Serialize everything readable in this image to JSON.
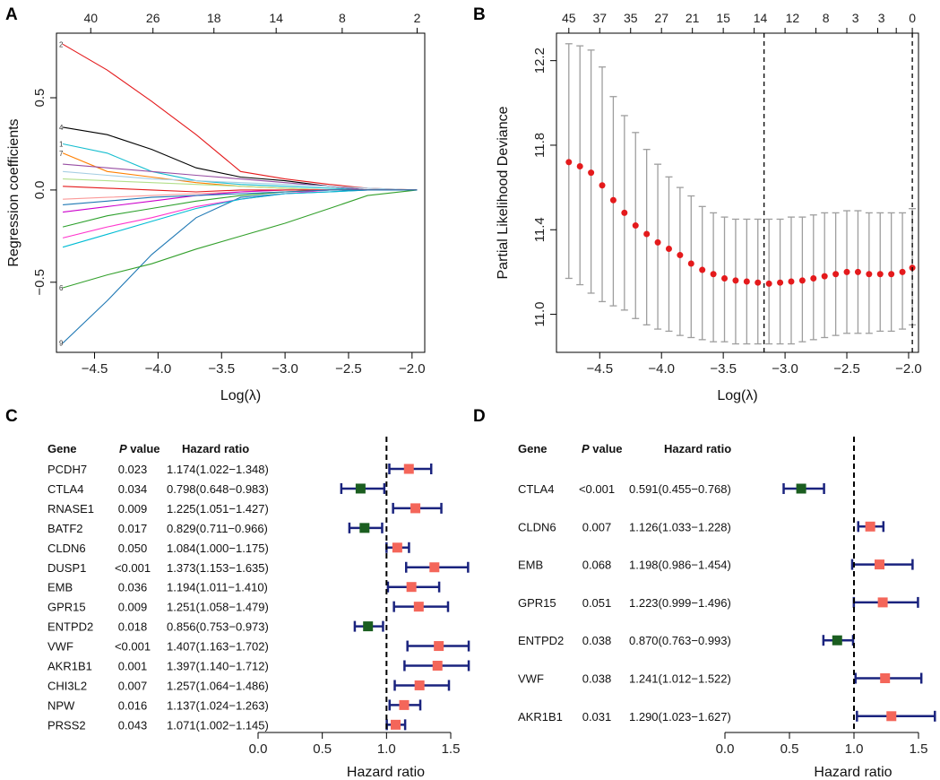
{
  "colors": {
    "deviance_point": "#e41a1c",
    "errorbar": "#9e9e9e",
    "risk_marker": "#f4665a",
    "protective_marker": "#1b5e20",
    "ci_line": "#1a237e",
    "lasso_palette": [
      "#e41a1c",
      "#1f78b4",
      "#33a02c",
      "#000000",
      "#17becf",
      "#ff7f00",
      "#984ea3",
      "#a6cee3",
      "#b2df8a",
      "#fb9a99",
      "#cc00cc",
      "#2ca02c",
      "#ff33cc",
      "#00bcd4"
    ]
  },
  "panel_labels": [
    "A",
    "B",
    "C",
    "D"
  ],
  "chart_data": [
    {
      "panel": "A",
      "type": "line",
      "title": "",
      "xlabel": "Log(λ)",
      "ylabel": "Regression coefficients",
      "xlim": [
        -4.8,
        -1.9
      ],
      "ylim": [
        -0.88,
        0.85
      ],
      "xticks": [
        -4.5,
        -4.0,
        -3.5,
        -3.0,
        -2.5,
        -2.0
      ],
      "xtick_labels": [
        "−4.5",
        "−4.0",
        "−3.5",
        "−3.0",
        "−2.5",
        "−2.0"
      ],
      "yticks": [
        -0.5,
        0.0,
        0.5
      ],
      "ytick_labels": [
        "−0.5",
        "0.0",
        "0.5"
      ],
      "top_axis_positions": [
        -4.53,
        -4.04,
        -3.56,
        -3.07,
        -2.55,
        -1.96
      ],
      "top_axis_labels": [
        "40",
        "26",
        "18",
        "14",
        "8",
        "2"
      ],
      "x": [
        -4.75,
        -4.4,
        -4.05,
        -3.7,
        -3.35,
        -3.0,
        -2.65,
        -2.35,
        -1.96
      ],
      "series": [
        {
          "name": "path1",
          "values": [
            0.79,
            0.65,
            0.48,
            0.3,
            0.1,
            0.06,
            0.03,
            0.01,
            0.0
          ]
        },
        {
          "name": "path2",
          "values": [
            -0.83,
            -0.6,
            -0.35,
            -0.15,
            -0.04,
            -0.02,
            -0.01,
            0.0,
            0.0
          ]
        },
        {
          "name": "path3",
          "values": [
            -0.53,
            -0.46,
            -0.4,
            -0.32,
            -0.25,
            -0.18,
            -0.1,
            -0.03,
            0.0
          ]
        },
        {
          "name": "path4",
          "values": [
            0.34,
            0.3,
            0.22,
            0.12,
            0.07,
            0.05,
            0.02,
            0.0,
            0.0
          ]
        },
        {
          "name": "path5",
          "values": [
            0.25,
            0.2,
            0.1,
            0.05,
            0.03,
            0.02,
            0.01,
            0.0,
            0.0
          ]
        },
        {
          "name": "path6",
          "values": [
            0.2,
            0.1,
            0.07,
            0.04,
            0.02,
            0.01,
            0.0,
            0.0,
            0.0
          ]
        },
        {
          "name": "path7",
          "values": [
            0.14,
            0.12,
            0.1,
            0.08,
            0.06,
            0.04,
            0.02,
            0.0,
            0.0
          ]
        },
        {
          "name": "path8",
          "values": [
            0.1,
            0.08,
            0.06,
            0.05,
            0.04,
            0.03,
            0.02,
            0.01,
            0.0
          ]
        },
        {
          "name": "path9",
          "values": [
            0.06,
            0.05,
            0.04,
            0.03,
            0.02,
            0.01,
            0.0,
            0.0,
            0.0
          ]
        },
        {
          "name": "path10",
          "values": [
            -0.05,
            -0.04,
            -0.03,
            -0.02,
            -0.01,
            0.0,
            0.0,
            0.0,
            0.0
          ]
        },
        {
          "name": "path11",
          "values": [
            -0.12,
            -0.09,
            -0.06,
            -0.03,
            -0.01,
            0.0,
            0.0,
            0.0,
            0.0
          ]
        },
        {
          "name": "path12",
          "values": [
            -0.2,
            -0.14,
            -0.1,
            -0.06,
            -0.03,
            -0.01,
            0.0,
            0.0,
            0.0
          ]
        },
        {
          "name": "path13",
          "values": [
            -0.26,
            -0.2,
            -0.15,
            -0.09,
            -0.05,
            -0.02,
            0.0,
            0.0,
            0.0
          ]
        },
        {
          "name": "path14",
          "values": [
            -0.31,
            -0.24,
            -0.17,
            -0.1,
            -0.05,
            -0.02,
            -0.01,
            0.0,
            0.0
          ]
        },
        {
          "name": "path15",
          "values": [
            0.02,
            0.01,
            0.0,
            -0.01,
            0.0,
            0.0,
            0.0,
            0.0,
            0.0
          ]
        },
        {
          "name": "path16",
          "values": [
            -0.08,
            -0.06,
            -0.04,
            -0.03,
            -0.02,
            -0.01,
            0.0,
            0.0,
            0.0
          ]
        }
      ],
      "line_end_labels": [
        "2",
        "4",
        "1",
        "7",
        "6",
        "9"
      ]
    },
    {
      "panel": "B",
      "type": "scatter",
      "title": "",
      "xlabel": "Log(λ)",
      "ylabel": "Partial Likelihood Deviance",
      "xlim": [
        -4.85,
        -1.92
      ],
      "ylim": [
        10.82,
        12.33
      ],
      "xticks": [
        -4.5,
        -4.0,
        -3.5,
        -3.0,
        -2.5,
        -2.0
      ],
      "xtick_labels": [
        "−4.5",
        "−4.0",
        "−3.5",
        "−3.0",
        "−2.5",
        "−2.0"
      ],
      "yticks": [
        11.0,
        11.4,
        11.8,
        12.2
      ],
      "ytick_labels": [
        "11.0",
        "11.4",
        "11.8",
        "12.2"
      ],
      "top_axis_positions": [
        -4.75,
        -4.5,
        -4.25,
        -4.0,
        -3.75,
        -3.5,
        -3.25,
        -3.0,
        -2.75,
        -2.5,
        -2.25,
        -2.1,
        -1.97
      ],
      "top_axis_labels": [
        "45",
        "37",
        "35",
        "27",
        "21",
        "15",
        "14",
        "12",
        "8",
        "3",
        "3",
        "0"
      ],
      "top_axis_label_positions": [
        -4.75,
        -4.5,
        -4.25,
        -4.0,
        -3.75,
        -3.5,
        -3.2,
        -2.94,
        -2.67,
        -2.43,
        -2.22,
        -1.97
      ],
      "vlines": [
        -3.17,
        -1.97
      ],
      "x": [
        -4.75,
        -4.66,
        -4.57,
        -4.48,
        -4.39,
        -4.3,
        -4.21,
        -4.12,
        -4.03,
        -3.94,
        -3.85,
        -3.76,
        -3.67,
        -3.58,
        -3.49,
        -3.4,
        -3.31,
        -3.22,
        -3.13,
        -3.04,
        -2.95,
        -2.86,
        -2.77,
        -2.68,
        -2.59,
        -2.5,
        -2.41,
        -2.32,
        -2.23,
        -2.14,
        -2.05,
        -1.97
      ],
      "y": [
        11.72,
        11.7,
        11.67,
        11.61,
        11.54,
        11.48,
        11.42,
        11.38,
        11.34,
        11.31,
        11.28,
        11.24,
        11.21,
        11.19,
        11.17,
        11.16,
        11.155,
        11.15,
        11.145,
        11.15,
        11.155,
        11.16,
        11.17,
        11.18,
        11.19,
        11.2,
        11.2,
        11.19,
        11.19,
        11.19,
        11.2,
        11.22
      ],
      "upper": [
        12.28,
        12.27,
        12.25,
        12.17,
        12.03,
        11.94,
        11.86,
        11.78,
        11.71,
        11.65,
        11.6,
        11.56,
        11.51,
        11.48,
        11.46,
        11.45,
        11.45,
        11.45,
        11.45,
        11.45,
        11.46,
        11.46,
        11.47,
        11.48,
        11.48,
        11.49,
        11.49,
        11.48,
        11.48,
        11.48,
        11.48,
        11.5
      ],
      "lower": [
        11.17,
        11.14,
        11.1,
        11.06,
        11.04,
        11.02,
        10.98,
        10.95,
        10.93,
        10.92,
        10.9,
        10.89,
        10.88,
        10.87,
        10.87,
        10.86,
        10.86,
        10.86,
        10.86,
        10.86,
        10.86,
        10.87,
        10.88,
        10.89,
        10.9,
        10.91,
        10.91,
        10.91,
        10.92,
        10.92,
        10.93,
        10.95
      ]
    },
    {
      "panel": "C",
      "type": "forest",
      "xlabel": "Hazard ratio",
      "xlim": [
        0,
        1.5
      ],
      "xticks": [
        0.0,
        0.5,
        1.0,
        1.5
      ],
      "xtick_labels": [
        "0.0",
        "0.5",
        "1.0",
        "1.5"
      ],
      "reference_line": 1.0,
      "headers": {
        "gene": "Gene",
        "p_italic": "P",
        "p_rest": " value",
        "hr": "Hazard ratio"
      },
      "rows": [
        {
          "gene": "PCDH7",
          "p": "0.023",
          "hr_text": "1.174(1.022−1.348)",
          "hr": 1.174,
          "lo": 1.022,
          "hi": 1.348
        },
        {
          "gene": "CTLA4",
          "p": "0.034",
          "hr_text": "0.798(0.648−0.983)",
          "hr": 0.798,
          "lo": 0.648,
          "hi": 0.983
        },
        {
          "gene": "RNASE1",
          "p": "0.009",
          "hr_text": "1.225(1.051−1.427)",
          "hr": 1.225,
          "lo": 1.051,
          "hi": 1.427
        },
        {
          "gene": "BATF2",
          "p": "0.017",
          "hr_text": "0.829(0.711−0.966)",
          "hr": 0.829,
          "lo": 0.711,
          "hi": 0.966
        },
        {
          "gene": "CLDN6",
          "p": "0.050",
          "hr_text": "1.084(1.000−1.175)",
          "hr": 1.084,
          "lo": 1.0,
          "hi": 1.175
        },
        {
          "gene": "DUSP1",
          "p": "<0.001",
          "hr_text": "1.373(1.153−1.635)",
          "hr": 1.373,
          "lo": 1.153,
          "hi": 1.635
        },
        {
          "gene": "EMB",
          "p": "0.036",
          "hr_text": "1.194(1.011−1.410)",
          "hr": 1.194,
          "lo": 1.011,
          "hi": 1.41
        },
        {
          "gene": "GPR15",
          "p": "0.009",
          "hr_text": "1.251(1.058−1.479)",
          "hr": 1.251,
          "lo": 1.058,
          "hi": 1.479
        },
        {
          "gene": "ENTPD2",
          "p": "0.018",
          "hr_text": "0.856(0.753−0.973)",
          "hr": 0.856,
          "lo": 0.753,
          "hi": 0.973
        },
        {
          "gene": "VWF",
          "p": "<0.001",
          "hr_text": "1.407(1.163−1.702)",
          "hr": 1.407,
          "lo": 1.163,
          "hi": 1.702
        },
        {
          "gene": "AKR1B1",
          "p": "0.001",
          "hr_text": "1.397(1.140−1.712)",
          "hr": 1.397,
          "lo": 1.14,
          "hi": 1.712
        },
        {
          "gene": "CHI3L2",
          "p": "0.007",
          "hr_text": "1.257(1.064−1.486)",
          "hr": 1.257,
          "lo": 1.064,
          "hi": 1.486
        },
        {
          "gene": "NPW",
          "p": "0.016",
          "hr_text": "1.137(1.024−1.263)",
          "hr": 1.137,
          "lo": 1.024,
          "hi": 1.263
        },
        {
          "gene": "PRSS2",
          "p": "0.043",
          "hr_text": "1.071(1.002−1.145)",
          "hr": 1.071,
          "lo": 1.002,
          "hi": 1.145
        }
      ]
    },
    {
      "panel": "D",
      "type": "forest",
      "xlabel": "Hazard ratio",
      "xlim": [
        0,
        1.5
      ],
      "xticks": [
        0.0,
        0.5,
        1.0,
        1.5
      ],
      "xtick_labels": [
        "0.0",
        "0.5",
        "1.0",
        "1.5"
      ],
      "reference_line": 1.0,
      "headers": {
        "gene": "Gene",
        "p_italic": "P",
        "p_rest": " value",
        "hr": "Hazard ratio"
      },
      "rows": [
        {
          "gene": "CTLA4",
          "p": "<0.001",
          "hr_text": "0.591(0.455−0.768)",
          "hr": 0.591,
          "lo": 0.455,
          "hi": 0.768
        },
        {
          "gene": "CLDN6",
          "p": "0.007",
          "hr_text": "1.126(1.033−1.228)",
          "hr": 1.126,
          "lo": 1.033,
          "hi": 1.228
        },
        {
          "gene": "EMB",
          "p": "0.068",
          "hr_text": "1.198(0.986−1.454)",
          "hr": 1.198,
          "lo": 0.986,
          "hi": 1.454
        },
        {
          "gene": "GPR15",
          "p": "0.051",
          "hr_text": "1.223(0.999−1.496)",
          "hr": 1.223,
          "lo": 0.999,
          "hi": 1.496
        },
        {
          "gene": "ENTPD2",
          "p": "0.038",
          "hr_text": "0.870(0.763−0.993)",
          "hr": 0.87,
          "lo": 0.763,
          "hi": 0.993
        },
        {
          "gene": "VWF",
          "p": "0.038",
          "hr_text": "1.241(1.012−1.522)",
          "hr": 1.241,
          "lo": 1.012,
          "hi": 1.522
        },
        {
          "gene": "AKR1B1",
          "p": "0.031",
          "hr_text": "1.290(1.023−1.627)",
          "hr": 1.29,
          "lo": 1.023,
          "hi": 1.627
        }
      ]
    }
  ]
}
